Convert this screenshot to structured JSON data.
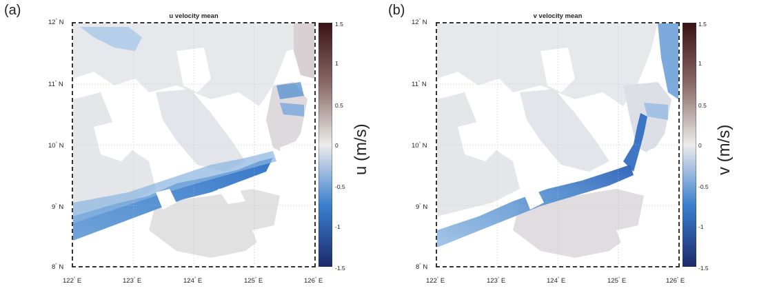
{
  "panels": [
    {
      "letter": "(a)",
      "title": "u velocity mean",
      "colorbar_label": "u (m/s)"
    },
    {
      "letter": "(b)",
      "title": "v velocity mean",
      "colorbar_label": "v (m/s)"
    }
  ],
  "axes": {
    "lat_ticks": [
      {
        "deg": "12",
        "hem": "N"
      },
      {
        "deg": "11",
        "hem": "N"
      },
      {
        "deg": "10",
        "hem": "N"
      },
      {
        "deg": "9",
        "hem": "N"
      },
      {
        "deg": "8",
        "hem": "N"
      }
    ],
    "lon_ticks": [
      {
        "deg": "122",
        "hem": "E"
      },
      {
        "deg": "123",
        "hem": "E"
      },
      {
        "deg": "124",
        "hem": "E"
      },
      {
        "deg": "125",
        "hem": "E"
      },
      {
        "deg": "126",
        "hem": "E"
      }
    ],
    "lat_range": [
      8,
      12
    ],
    "lon_range": [
      122,
      126
    ],
    "degree_symbol": "°",
    "grid": "dotted"
  },
  "colorbar": {
    "ticks": [
      "1.5",
      "1",
      "0.5",
      "0",
      "-0.5",
      "-1",
      "-1.5"
    ],
    "range": [
      -1.5,
      1.5
    ],
    "colormap": "blue-white-brown",
    "colors": {
      "low": "#1c2a6b",
      "mid_low": "#3a7ed0",
      "zero": "#ececec",
      "mid_high": "#8a6a66",
      "high": "#3a1216"
    }
  },
  "colors": {
    "land": "#ffffff",
    "frame": "#333333"
  }
}
